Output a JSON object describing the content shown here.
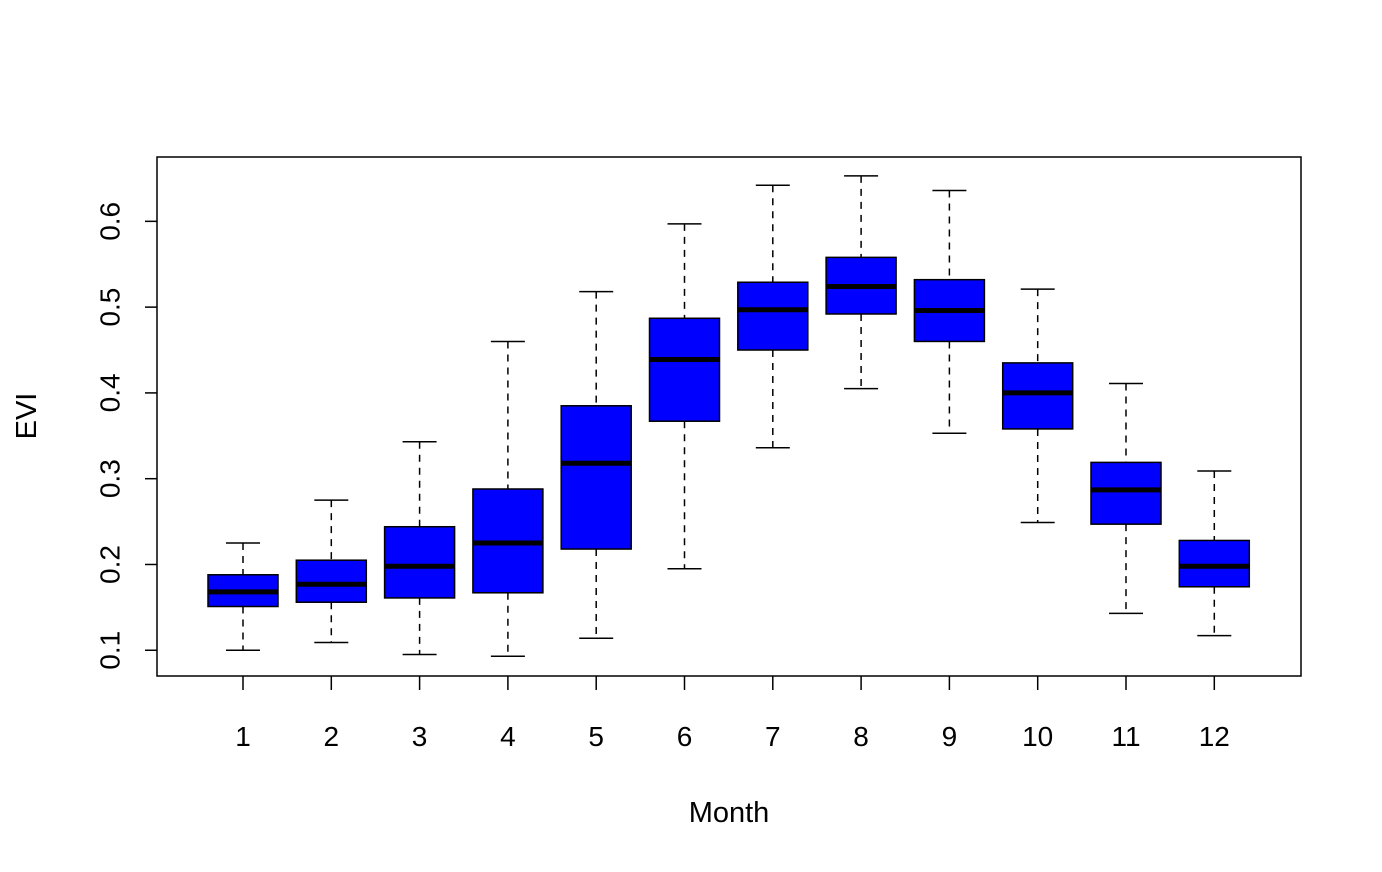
{
  "chart_data": {
    "type": "boxplot",
    "title": "",
    "xlabel": "Month",
    "ylabel": "EVI",
    "categories": [
      "1",
      "2",
      "3",
      "4",
      "5",
      "6",
      "7",
      "8",
      "9",
      "10",
      "11",
      "12"
    ],
    "ylim": [
      0.07,
      0.675
    ],
    "yticks": [
      0.1,
      0.2,
      0.3,
      0.4,
      0.5,
      0.6
    ],
    "ytick_labels": [
      "0.1",
      "0.2",
      "0.3",
      "0.4",
      "0.5",
      "0.6"
    ],
    "box_color": "#0000ff",
    "grid": false,
    "legend": "none",
    "boxes": [
      {
        "month": "1",
        "min": 0.1,
        "q1": 0.151,
        "median": 0.168,
        "q3": 0.188,
        "max": 0.225
      },
      {
        "month": "2",
        "min": 0.109,
        "q1": 0.156,
        "median": 0.177,
        "q3": 0.205,
        "max": 0.275
      },
      {
        "month": "3",
        "min": 0.095,
        "q1": 0.161,
        "median": 0.198,
        "q3": 0.244,
        "max": 0.343
      },
      {
        "month": "4",
        "min": 0.093,
        "q1": 0.167,
        "median": 0.225,
        "q3": 0.288,
        "max": 0.46
      },
      {
        "month": "5",
        "min": 0.114,
        "q1": 0.218,
        "median": 0.318,
        "q3": 0.385,
        "max": 0.518
      },
      {
        "month": "6",
        "min": 0.195,
        "q1": 0.367,
        "median": 0.439,
        "q3": 0.487,
        "max": 0.597
      },
      {
        "month": "7",
        "min": 0.336,
        "q1": 0.45,
        "median": 0.497,
        "q3": 0.529,
        "max": 0.642
      },
      {
        "month": "8",
        "min": 0.405,
        "q1": 0.492,
        "median": 0.524,
        "q3": 0.558,
        "max": 0.653
      },
      {
        "month": "9",
        "min": 0.353,
        "q1": 0.46,
        "median": 0.496,
        "q3": 0.532,
        "max": 0.636
      },
      {
        "month": "10",
        "min": 0.249,
        "q1": 0.358,
        "median": 0.4,
        "q3": 0.435,
        "max": 0.521
      },
      {
        "month": "11",
        "min": 0.143,
        "q1": 0.247,
        "median": 0.287,
        "q3": 0.319,
        "max": 0.411
      },
      {
        "month": "12",
        "min": 0.117,
        "q1": 0.174,
        "median": 0.198,
        "q3": 0.228,
        "max": 0.309
      }
    ]
  }
}
